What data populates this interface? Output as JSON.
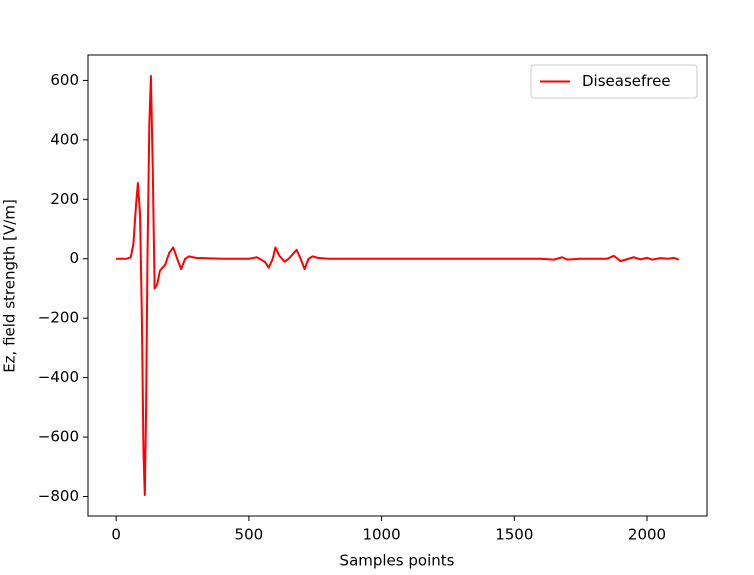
{
  "chart_data": {
    "type": "line",
    "xlabel": "Samples points",
    "ylabel": "Ez, field strength [V/m]",
    "x": [
      0,
      40,
      55,
      65,
      75,
      82,
      90,
      97,
      103,
      108,
      113,
      118,
      125,
      131,
      138,
      145,
      155,
      165,
      185,
      200,
      215,
      230,
      245,
      260,
      275,
      300,
      400,
      500,
      530,
      560,
      575,
      590,
      600,
      615,
      635,
      650,
      665,
      680,
      695,
      710,
      725,
      740,
      760,
      800,
      1000,
      1200,
      1400,
      1600,
      1650,
      1680,
      1700,
      1750,
      1850,
      1875,
      1900,
      1950,
      1975,
      2000,
      2020,
      2050,
      2080,
      2100,
      2120
    ],
    "series": [
      {
        "name": "Diseasefree",
        "color": "#ff0000",
        "values": [
          0,
          0,
          5,
          50,
          180,
          255,
          150,
          -200,
          -650,
          -795,
          -500,
          0,
          450,
          615,
          300,
          -100,
          -85,
          -40,
          -20,
          20,
          38,
          0,
          -35,
          0,
          8,
          3,
          0,
          0,
          5,
          -10,
          -30,
          0,
          38,
          10,
          -10,
          0,
          15,
          30,
          0,
          -35,
          0,
          8,
          3,
          0,
          0,
          0,
          0,
          0,
          -3,
          5,
          -3,
          0,
          0,
          10,
          -8,
          5,
          -2,
          3,
          -3,
          2,
          0,
          3,
          -3
        ]
      }
    ],
    "xlim": [
      -106,
      2226
    ],
    "xticks": [
      0,
      500,
      1000,
      1500,
      2000
    ],
    "ylim": [
      -865.5,
      685.5
    ],
    "yticks": [
      {
        "value": -800,
        "label": "−800"
      },
      {
        "value": -600,
        "label": "−600"
      },
      {
        "value": -400,
        "label": "−400"
      },
      {
        "value": -200,
        "label": "−200"
      },
      0,
      200,
      400,
      600
    ],
    "legend": "upper right"
  }
}
